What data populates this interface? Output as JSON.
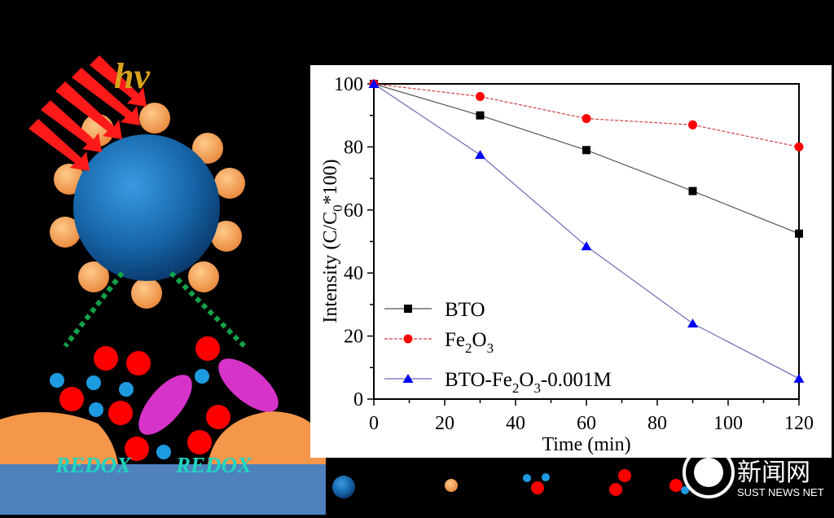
{
  "illustration": {
    "light_label": "hv",
    "redox_labels": [
      "REDOX",
      "REDOX"
    ],
    "colors": {
      "core": "#1565a8",
      "shell": "#f4a15a",
      "arrow": "#ff1a1a",
      "electrolyte_red": "#ff0000",
      "electrolyte_blue": "#1e9be0",
      "dye": "#d633c9",
      "substrate": "#4f81bd",
      "dotted_line": "#13a34a"
    }
  },
  "legend_strip": {
    "items": [
      "BTO particle",
      "Fe2O3 particle",
      "water molecule",
      "oxygen",
      "oxygen-hydrogen"
    ]
  },
  "watermark": {
    "text": "新闻网",
    "subtext": "SUST NEWS NET"
  },
  "chart_data": {
    "type": "line",
    "xlabel": "Time (min)",
    "ylabel_main": "Intensity (C/C",
    "ylabel_sub": "0",
    "ylabel_tail": "*100)",
    "xlim": [
      0,
      120
    ],
    "ylim": [
      0,
      100
    ],
    "xticks": [
      0,
      20,
      40,
      60,
      80,
      100,
      120
    ],
    "yticks": [
      0,
      20,
      40,
      60,
      80,
      100
    ],
    "grid": false,
    "legend_position": "bottom-left",
    "x": [
      0,
      30,
      60,
      90,
      120
    ],
    "series": [
      {
        "name": "BTO",
        "name_parts": [
          "BTO"
        ],
        "marker": "square",
        "color": "#000000",
        "line_color": "#555555",
        "dashed": false,
        "values": [
          100,
          90,
          79,
          66,
          52.5
        ]
      },
      {
        "name": "Fe2O3",
        "name_parts": [
          "Fe",
          "2",
          "O",
          "3"
        ],
        "marker": "circle",
        "color": "#ff0000",
        "line_color": "#d04040",
        "dashed": true,
        "values": [
          100,
          96,
          89,
          87,
          80
        ]
      },
      {
        "name": "BTO-Fe2O3-0.001M",
        "name_parts": [
          "BTO-Fe",
          "2",
          "O",
          "3",
          "-0.001M"
        ],
        "marker": "triangle",
        "color": "#0000ff",
        "line_color": "#6a6ab8",
        "dashed": false,
        "values": [
          100,
          77.5,
          48.5,
          24,
          6.5
        ]
      }
    ]
  }
}
